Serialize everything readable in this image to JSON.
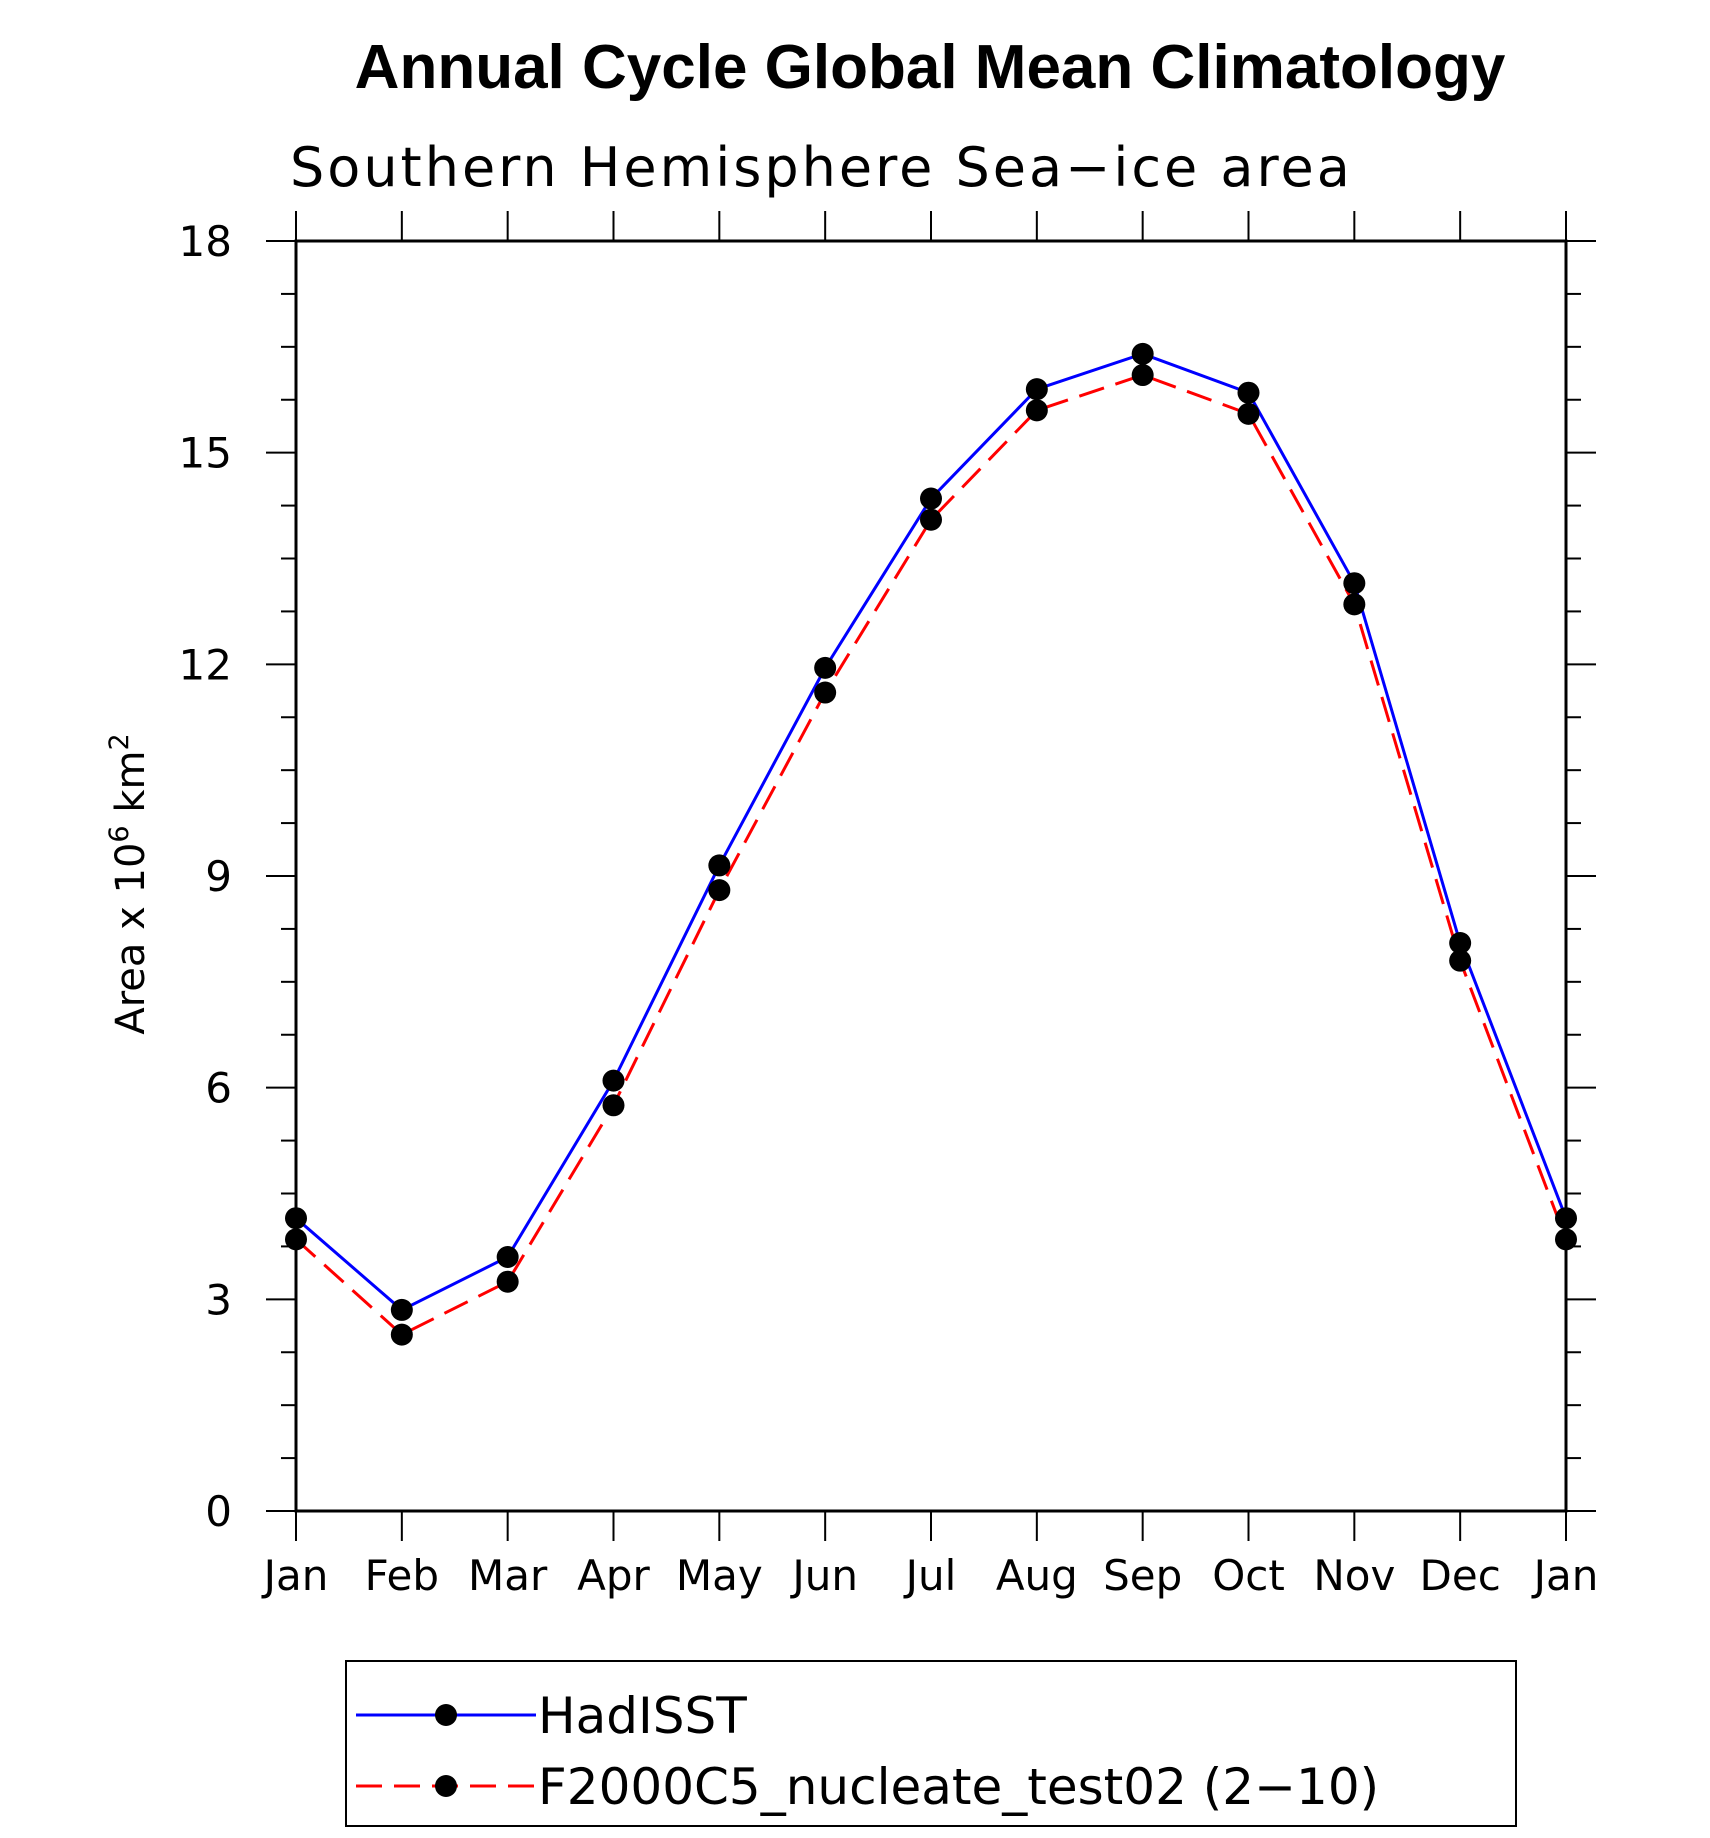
{
  "chart_data": {
    "type": "line",
    "title": "Annual Cycle Global Mean Climatology",
    "subtitle": "Southern Hemisphere Sea−ice area",
    "ylabel": {
      "base": "Area x 10",
      "exp1": "6",
      "mid": " km",
      "exp2": "2"
    },
    "categories": [
      "Jan",
      "Feb",
      "Mar",
      "Apr",
      "May",
      "Jun",
      "Jul",
      "Aug",
      "Sep",
      "Oct",
      "Nov",
      "Dec",
      "Jan"
    ],
    "ylim": [
      0,
      18
    ],
    "yticks": [
      0,
      3,
      6,
      9,
      12,
      15,
      18
    ],
    "grid": false,
    "legend_placement": "bottom",
    "series": [
      {
        "name": "HadISST",
        "color": "#0000ff",
        "dash": "solid",
        "marker": "filled-circle",
        "values": [
          4.15,
          2.85,
          3.6,
          6.1,
          9.15,
          11.95,
          14.35,
          15.9,
          16.4,
          15.85,
          13.15,
          8.05,
          4.15
        ]
      },
      {
        "name": "F2000C5_nucleate_test02 (2−10)",
        "color": "#ff0000",
        "dash": "dashed",
        "marker": "filled-circle",
        "values": [
          3.85,
          2.5,
          3.25,
          5.75,
          8.8,
          11.6,
          14.05,
          15.6,
          16.1,
          15.55,
          12.85,
          7.8,
          3.85
        ]
      }
    ]
  }
}
